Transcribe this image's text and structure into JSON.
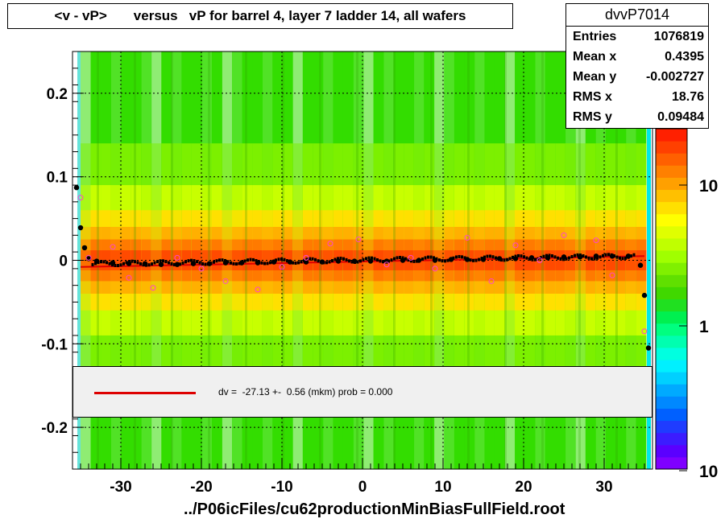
{
  "title": "<v - vP>       versus   vP for barrel 4, layer 7 ladder 14, all wafers",
  "stats": {
    "name": "dvvP7014",
    "rows": [
      {
        "label": "Entries",
        "value": "1076819"
      },
      {
        "label": "Mean x",
        "value": "0.4395"
      },
      {
        "label": "Mean y",
        "value": "-0.002727"
      },
      {
        "label": "RMS x",
        "value": "18.76"
      },
      {
        "label": "RMS y",
        "value": "0.09484"
      }
    ]
  },
  "xaxis_title": "../P06icFiles/cu62productionMinBiasFullField.root",
  "legend": {
    "text": "dv =  -27.13 +-  0.56 (mkm) prob = 0.000",
    "line_color": "#dd0000"
  },
  "colors": {
    "profile_points": "#000000",
    "fit_line": "#dd0000",
    "open_markers": "#ff44cc"
  },
  "chart_data": {
    "type": "heatmap",
    "xlim": [
      -36,
      36
    ],
    "ylim": [
      -0.25,
      0.25
    ],
    "z_scale": "log",
    "xticks": [
      -30,
      -20,
      -10,
      0,
      10,
      20,
      30
    ],
    "yticks": [
      0.2,
      0.1,
      0,
      -0.1,
      -0.2
    ],
    "ytick_labels": [
      "0.2",
      "0.1",
      "0",
      "-0.1",
      "-0.2"
    ],
    "xtick_labels": [
      "-30",
      "-20",
      "-10",
      "0",
      "10",
      "20",
      "30"
    ],
    "z_tick_labels": [
      "10",
      "1",
      "10"
    ],
    "grid": true,
    "profile": {
      "x": [
        -35.5,
        -35,
        -34.5,
        -34,
        -33,
        -31,
        -29,
        -27,
        -25,
        -23,
        -21,
        -19,
        -17,
        -15,
        -13,
        -11,
        -9,
        -7,
        -5,
        -3,
        -1,
        1,
        3,
        5,
        7,
        9,
        11,
        13,
        15,
        17,
        19,
        21,
        23,
        25,
        27,
        29,
        31,
        33,
        34.5,
        35,
        35.5
      ],
      "y": [
        0.087,
        0.039,
        0.015,
        0.002,
        -0.001,
        -0.003,
        -0.004,
        -0.004,
        -0.005,
        -0.005,
        -0.004,
        -0.004,
        -0.003,
        -0.003,
        -0.003,
        -0.002,
        -0.002,
        -0.002,
        -0.002,
        -0.001,
        -0.001,
        -0.001,
        -0.001,
        0.0,
        0.0,
        0.0,
        0.001,
        0.001,
        0.001,
        0.002,
        0.002,
        0.003,
        0.003,
        0.004,
        0.004,
        0.005,
        0.005,
        0.005,
        -0.006,
        -0.042,
        -0.105
      ]
    },
    "open_markers": {
      "x": [
        -35,
        -34,
        -31,
        -29,
        -26,
        -23,
        -20,
        -17,
        -13,
        -10,
        -7,
        -4,
        -0.5,
        3,
        6,
        9,
        13,
        16,
        19,
        22,
        25,
        29,
        31,
        35
      ],
      "y": [
        0.075,
        0.003,
        0.016,
        -0.021,
        -0.033,
        0.003,
        -0.01,
        -0.025,
        -0.035,
        -0.008,
        0.003,
        0.02,
        0.025,
        -0.005,
        0.003,
        -0.01,
        0.027,
        -0.025,
        0.018,
        0.0,
        0.03,
        0.024,
        -0.018,
        -0.085
      ]
    },
    "fit": {
      "x": [
        -35,
        35
      ],
      "y": [
        -0.008,
        0.005
      ]
    }
  }
}
